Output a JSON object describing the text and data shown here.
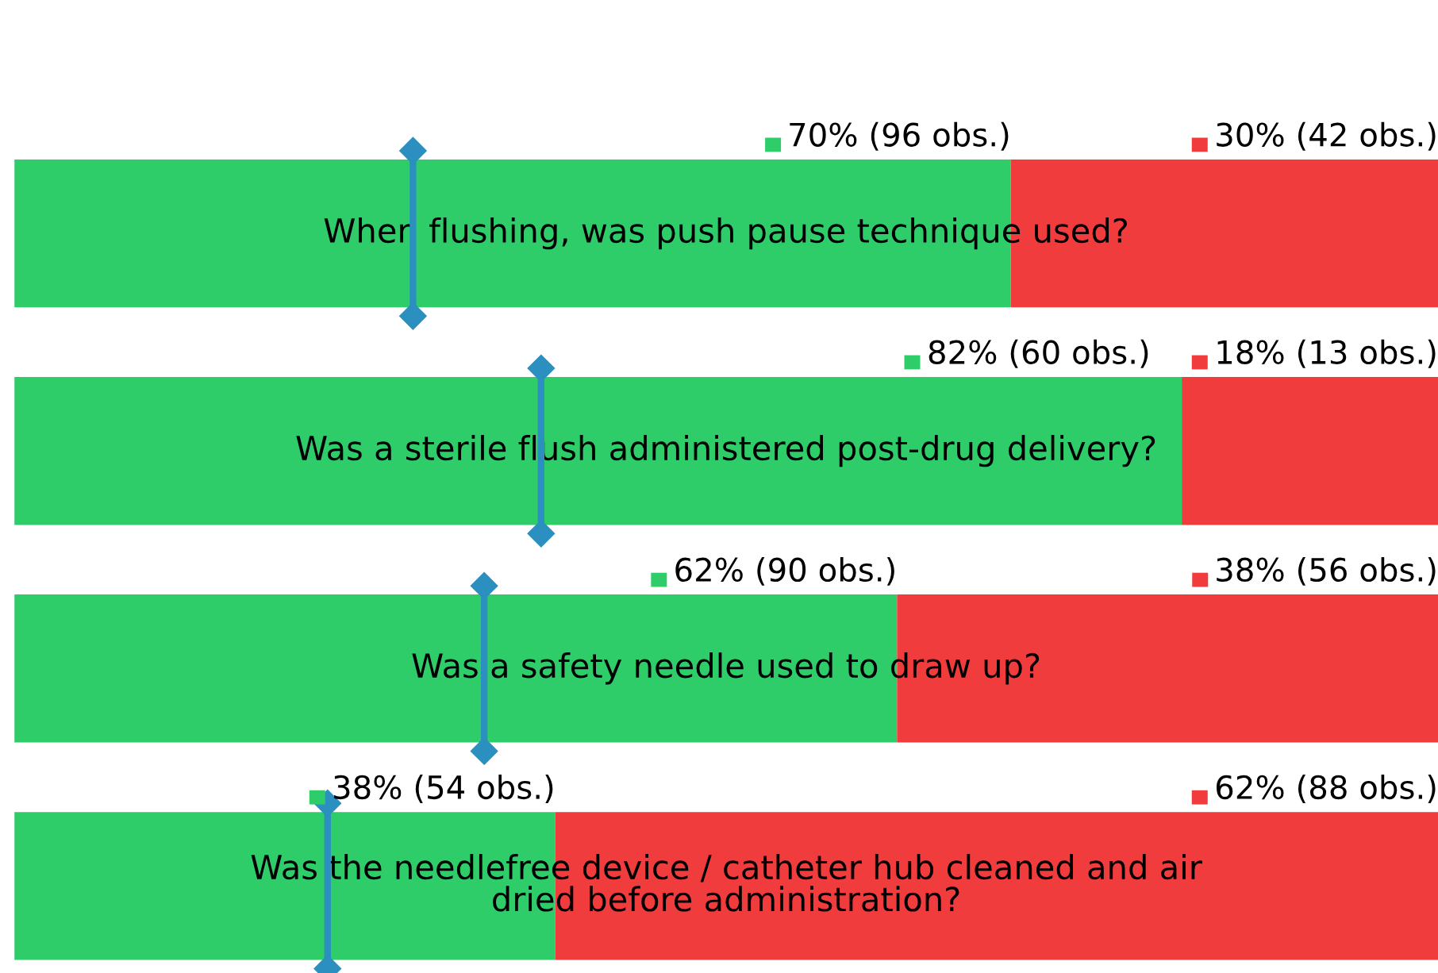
{
  "chart_data": {
    "type": "bar",
    "orientation": "horizontal",
    "stacked": true,
    "categories": [
      "When flushing, was push pause technique used?",
      "Was a sterile flush administered post-drug delivery?",
      "Was a safety needle used to draw up?",
      "Was the needlefree device / catheter hub cleaned and air dried before administration?"
    ],
    "series": [
      {
        "color": "#2fcc6a",
        "values": [
          70,
          82,
          62,
          38
        ],
        "value_labels": [
          "70% (96 obs.)",
          "82% (60 obs.)",
          "62% (90 obs.)",
          "38% (54 obs.)"
        ]
      },
      {
        "color": "#f03c3c",
        "values": [
          30,
          18,
          38,
          62
        ],
        "value_labels": [
          "30% (42 obs.)",
          "18% (13 obs.)",
          "38% (56 obs.)",
          "62% (88 obs.)"
        ]
      },
      {
        "type": "scatter",
        "color": "#2b8fc0",
        "marker": "diamond",
        "values": [
          28,
          37,
          33,
          22
        ]
      }
    ],
    "tick_labels": false
  }
}
